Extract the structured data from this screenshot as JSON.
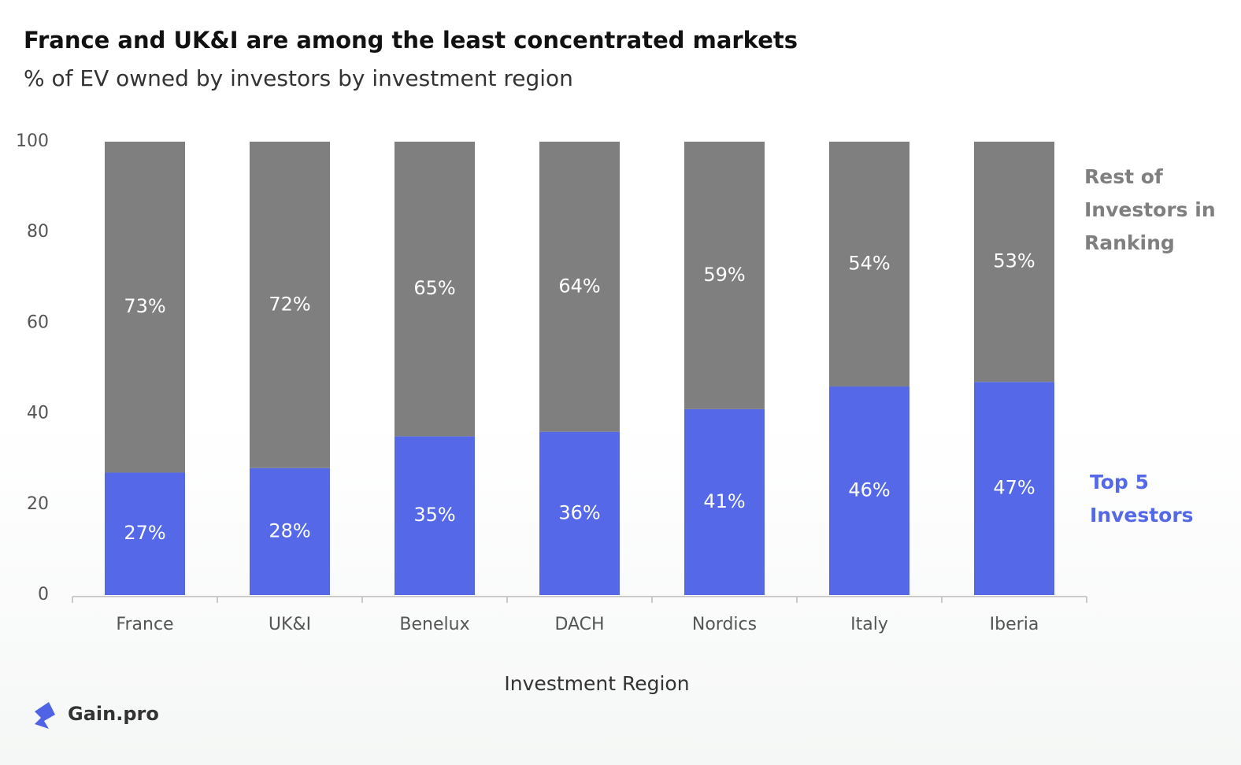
{
  "chart_data": {
    "type": "stacked_bar",
    "title": "France and UK&I are among the least concentrated markets",
    "subtitle": "% of EV owned by investors by investment region",
    "x_label": "Investment Region",
    "categories": [
      "France",
      "UK&I",
      "Benelux",
      "DACH",
      "Nordics",
      "Italy",
      "Iberia"
    ],
    "series": [
      {
        "name": "Top 5 Investors",
        "color": "#5468e8",
        "values": [
          27,
          28,
          35,
          36,
          41,
          46,
          47
        ],
        "value_labels": [
          "27%",
          "28%",
          "35%",
          "36%",
          "41%",
          "46%",
          "47%"
        ]
      },
      {
        "name": "Rest of Investors in Ranking",
        "color": "#7f7f7f",
        "values": [
          73,
          72,
          65,
          64,
          59,
          54,
          53
        ],
        "value_labels": [
          "73%",
          "72%",
          "65%",
          "64%",
          "59%",
          "54%",
          "53%"
        ]
      }
    ],
    "ylim": [
      0,
      100
    ],
    "yticks": [
      0,
      20,
      40,
      60,
      80,
      100
    ],
    "grid": false,
    "legend": "right"
  },
  "footer": {
    "logo": "Gain.pro"
  }
}
